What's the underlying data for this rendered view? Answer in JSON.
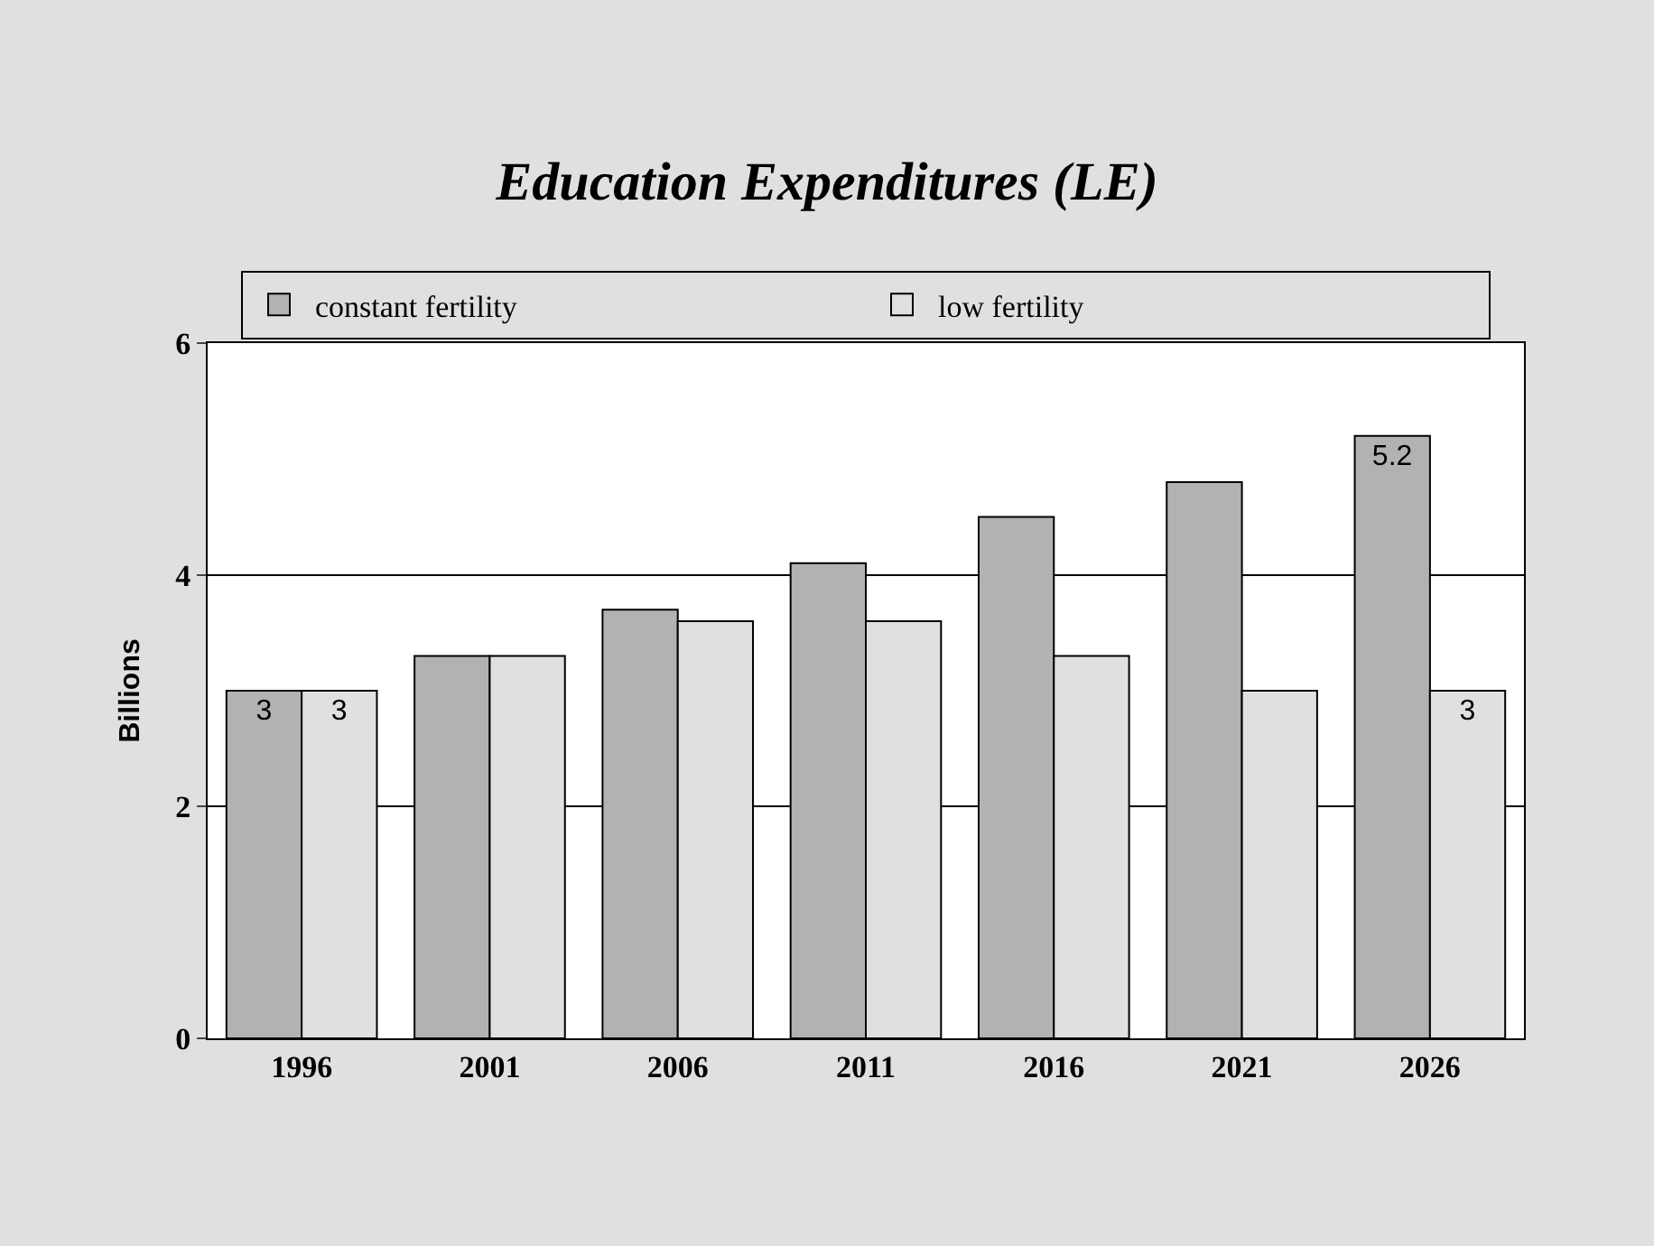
{
  "chart_data": {
    "type": "bar",
    "title": "Education Expenditures (LE)",
    "ylabel": "Billions",
    "categories": [
      "1996",
      "2001",
      "2006",
      "2011",
      "2016",
      "2021",
      "2026"
    ],
    "series": [
      {
        "name": "constant fertility",
        "color": "#b2b2b2",
        "values": [
          3,
          3.3,
          3.7,
          4.1,
          4.5,
          4.8,
          5.2
        ],
        "value_labels": [
          "3",
          null,
          null,
          null,
          null,
          null,
          "5.2"
        ]
      },
      {
        "name": "low fertility",
        "color": "#e0e0e0",
        "values": [
          3,
          3.3,
          3.6,
          3.6,
          3.3,
          3,
          3
        ],
        "value_labels": [
          "3",
          null,
          null,
          null,
          null,
          null,
          "3"
        ]
      }
    ],
    "ylim": [
      0,
      6
    ],
    "yticks": [
      0,
      2,
      4,
      6
    ],
    "grid": "y",
    "legend": "top"
  }
}
